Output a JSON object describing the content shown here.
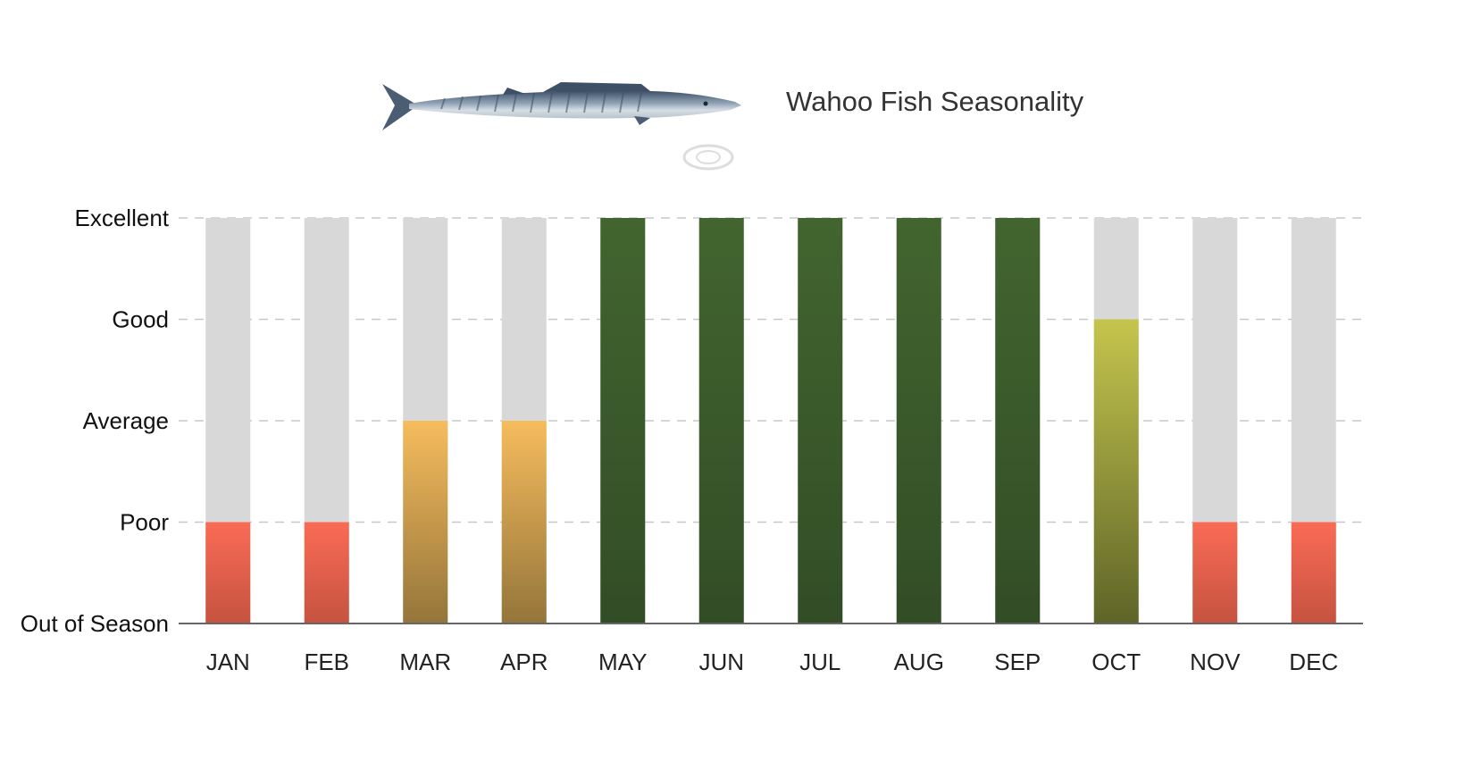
{
  "chart_data": {
    "type": "bar",
    "title": "Wahoo Fish Seasonality",
    "categories": [
      "JAN",
      "FEB",
      "MAR",
      "APR",
      "MAY",
      "JUN",
      "JUL",
      "AUG",
      "SEP",
      "OCT",
      "NOV",
      "DEC"
    ],
    "levels": [
      "Out of Season",
      "Poor",
      "Average",
      "Good",
      "Excellent"
    ],
    "values": [
      1,
      1,
      2,
      2,
      4,
      4,
      4,
      4,
      4,
      3,
      1,
      1
    ],
    "ylim": [
      0,
      4
    ],
    "grid": true,
    "colors": {
      "background_bar": "#d8d8d8",
      "poor": [
        "#fa6b55",
        "#c55340"
      ],
      "average": [
        "#f6bc5d",
        "#94753a"
      ],
      "good": [
        "#c5c54d",
        "#5e6428"
      ],
      "excellent": [
        "#42652f",
        "#324d26"
      ],
      "gridline": "#c8c8c8",
      "axis": "#666666"
    },
    "icons": [
      "wahoo-fish-illustration",
      "brand-logo-watermark"
    ]
  }
}
